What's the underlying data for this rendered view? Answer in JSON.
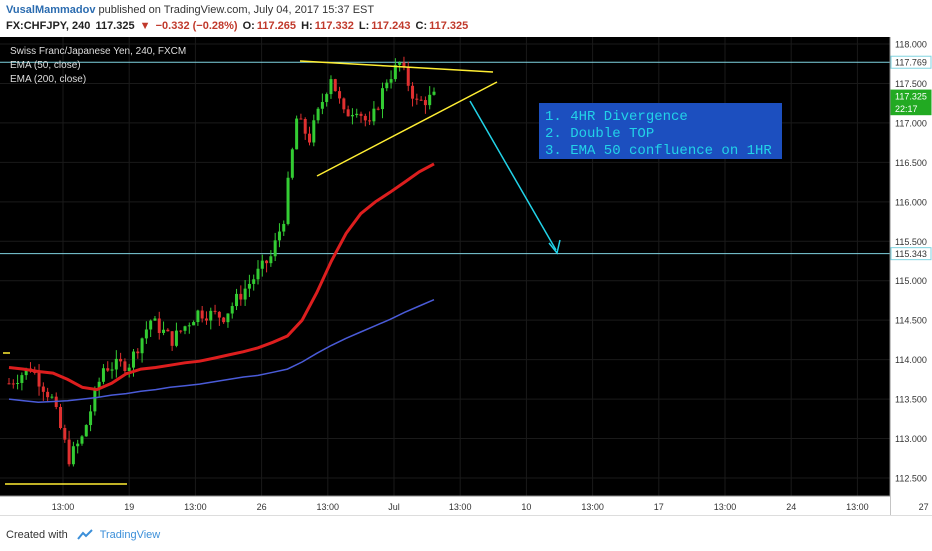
{
  "header": {
    "author": "VusalMammadov",
    "published": "published on TradingView.com, July 04, 2017 15:37 EST",
    "symbol": "FX:CHFJPY, 240",
    "price": "117.325",
    "change": "−0.332 (−0.28%)",
    "o_label": "O:",
    "o_value": "117.265",
    "h_label": "H:",
    "h_value": "117.332",
    "l_label": "L:",
    "l_value": "117.243",
    "c_label": "C:",
    "c_value": "117.325"
  },
  "legend": {
    "title": "Swiss Franc/Japanese Yen, 240, FXCM",
    "ema50": "EMA (50, close)",
    "ema200": "EMA (200, close)"
  },
  "annotation": {
    "lines": [
      "1. 4HR Divergence",
      "2. Double TOP",
      "3. EMA 50 confluence on 1HR"
    ]
  },
  "footer": {
    "created_with": "Created with",
    "brand": "TradingView"
  },
  "colors": {
    "up": "#33cc33",
    "down": "#e03030",
    "ema50": "#dd1e1e",
    "ema200": "#4a5bd8",
    "trend": "#ffee33",
    "arrow": "#22d3e8",
    "hline": "#7fd3e0",
    "box": "#1c4fbf"
  },
  "chart_data": {
    "type": "candlestick",
    "y_axis": {
      "ticks": [
        "112.500",
        "113.000",
        "113.500",
        "114.000",
        "114.500",
        "115.000",
        "115.500",
        "116.000",
        "116.500",
        "117.000",
        "117.500",
        "118.000"
      ],
      "ylim": [
        112.3,
        118.1
      ]
    },
    "x_axis": {
      "ticks": [
        "13:00",
        "19",
        "13:00",
        "26",
        "13:00",
        "Jul",
        "13:00",
        "10",
        "13:00",
        "17",
        "13:00",
        "24",
        "13:00",
        "27"
      ]
    },
    "price_labels": [
      "117.769",
      "117.325",
      "22:17",
      "115.343"
    ],
    "horizontal_levels": [
      117.769,
      115.343
    ],
    "ema50": [
      113.9,
      113.88,
      113.85,
      113.83,
      113.75,
      113.65,
      113.62,
      113.7,
      113.82,
      113.88,
      113.9,
      113.93,
      113.96,
      113.98,
      114.02,
      114.06,
      114.1,
      114.15,
      114.22,
      114.3,
      114.5,
      114.85,
      115.25,
      115.6,
      115.85,
      116.0,
      116.12,
      116.25,
      116.38,
      116.48
    ],
    "ema200": [
      113.5,
      113.48,
      113.46,
      113.47,
      113.48,
      113.5,
      113.52,
      113.55,
      113.57,
      113.6,
      113.62,
      113.65,
      113.67,
      113.69,
      113.72,
      113.75,
      113.78,
      113.8,
      113.84,
      113.88,
      113.97,
      114.08,
      114.18,
      114.27,
      114.35,
      114.43,
      114.51,
      114.6,
      114.68,
      114.76
    ]
  }
}
